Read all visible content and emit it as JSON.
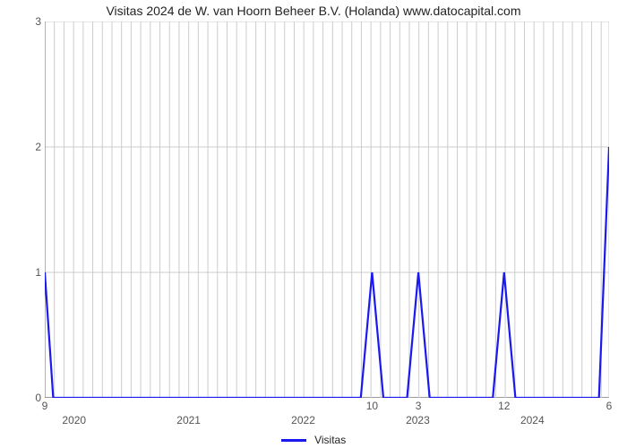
{
  "chart": {
    "type": "line",
    "title": "Visitas 2024 de W. van Hoorn Beheer B.V. (Holanda) www.datocapital.com",
    "title_fontsize": 14,
    "background_color": "#ffffff",
    "grid_color": "#cccccc",
    "axis_color": "#666666",
    "line_color": "#1a1af0",
    "line_width": 2.2,
    "ylim": [
      0,
      3
    ],
    "ytick_step": 1,
    "y_ticks": [
      0,
      1,
      2,
      3
    ],
    "x_major_ticks": [
      {
        "u": 0.052,
        "label": "2020"
      },
      {
        "u": 0.255,
        "label": "2021"
      },
      {
        "u": 0.458,
        "label": "2022"
      },
      {
        "u": 0.661,
        "label": "2023"
      },
      {
        "u": 0.864,
        "label": "2024"
      }
    ],
    "x_minor_label_positions": [
      {
        "u": 0.0,
        "label": "9"
      },
      {
        "u": 0.58,
        "label": "10"
      },
      {
        "u": 0.662,
        "label": "3"
      },
      {
        "u": 0.814,
        "label": "12"
      },
      {
        "u": 1.0,
        "label": "6"
      }
    ],
    "x_grid_u": [
      0.0,
      0.017,
      0.034,
      0.051,
      0.068,
      0.085,
      0.102,
      0.119,
      0.136,
      0.153,
      0.17,
      0.187,
      0.204,
      0.221,
      0.238,
      0.255,
      0.272,
      0.289,
      0.306,
      0.323,
      0.34,
      0.357,
      0.374,
      0.391,
      0.408,
      0.425,
      0.442,
      0.459,
      0.476,
      0.493,
      0.51,
      0.527,
      0.544,
      0.561,
      0.578,
      0.595,
      0.612,
      0.629,
      0.646,
      0.663,
      0.68,
      0.697,
      0.714,
      0.731,
      0.748,
      0.765,
      0.782,
      0.799,
      0.816,
      0.833,
      0.85,
      0.867,
      0.884,
      0.901,
      0.918,
      0.935,
      0.952,
      0.969,
      0.986,
      1.0
    ],
    "series": {
      "name": "Visitas",
      "points": [
        {
          "u": 0.0,
          "v": 1.0
        },
        {
          "u": 0.015,
          "v": 0.0
        },
        {
          "u": 0.56,
          "v": 0.0
        },
        {
          "u": 0.58,
          "v": 1.0
        },
        {
          "u": 0.6,
          "v": 0.0
        },
        {
          "u": 0.642,
          "v": 0.0
        },
        {
          "u": 0.662,
          "v": 1.0
        },
        {
          "u": 0.682,
          "v": 0.0
        },
        {
          "u": 0.794,
          "v": 0.0
        },
        {
          "u": 0.814,
          "v": 1.0
        },
        {
          "u": 0.834,
          "v": 0.0
        },
        {
          "u": 0.982,
          "v": 0.0
        },
        {
          "u": 1.0,
          "v": 2.0
        }
      ]
    },
    "legend_label": "Visitas",
    "label_fontsize": 12
  }
}
